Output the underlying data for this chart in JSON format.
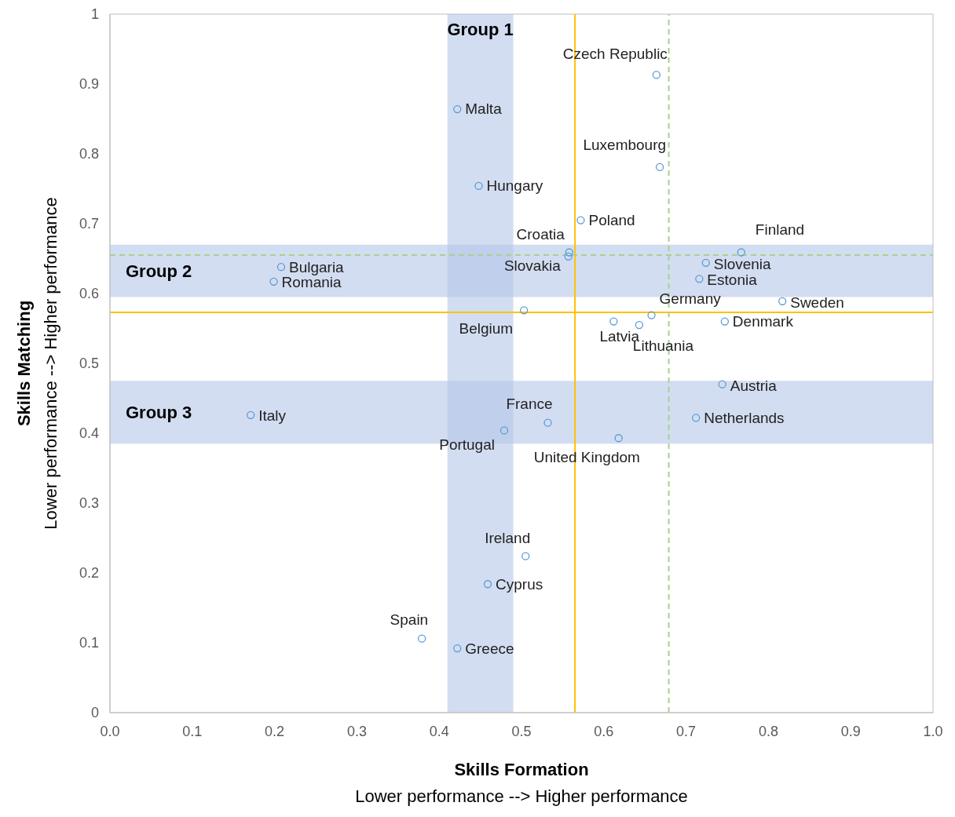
{
  "chart_data": {
    "type": "scatter",
    "xlabel": "Skills Formation\nLower performance --> Higher performance",
    "ylabel": "Skills Matching\nLower performance --> Higher performance",
    "xlim": [
      0,
      1
    ],
    "ylim": [
      0,
      1
    ],
    "xticks": [
      {
        "value": 0,
        "label": "0.0"
      },
      0.1,
      0.2,
      0.3,
      0.4,
      0.5,
      0.6,
      0.7,
      0.8,
      0.9,
      {
        "value": 1,
        "label": "1.0"
      }
    ],
    "yticks": [
      0,
      0.1,
      0.2,
      0.3,
      0.4,
      0.5,
      0.6,
      0.7,
      0.8,
      0.9,
      1
    ],
    "grid": false,
    "marker": "circle",
    "series": [
      {
        "color": "#5b9bd5",
        "x": [
          0.664,
          0.422,
          0.668,
          0.448,
          0.572,
          0.767,
          0.558,
          0.557,
          0.724,
          0.208,
          0.199,
          0.716,
          0.817,
          0.503,
          0.658,
          0.747,
          0.612,
          0.643,
          0.744,
          0.171,
          0.712,
          0.532,
          0.479,
          0.618,
          0.505,
          0.459,
          0.379,
          0.422
        ],
        "values": [
          0.913,
          0.864,
          0.781,
          0.754,
          0.705,
          0.659,
          0.659,
          0.653,
          0.644,
          0.638,
          0.617,
          0.621,
          0.589,
          0.576,
          0.569,
          0.56,
          0.56,
          0.555,
          0.47,
          0.426,
          0.422,
          0.415,
          0.404,
          0.393,
          0.224,
          0.184,
          0.106,
          0.092
        ]
      }
    ],
    "annotations": [
      {
        "text": "Czech Republic",
        "x": 0.664,
        "y": 0.913
      },
      {
        "text": "Malta",
        "x": 0.422,
        "y": 0.864
      },
      {
        "text": "Luxembourg",
        "x": 0.668,
        "y": 0.781
      },
      {
        "text": "Hungary",
        "x": 0.448,
        "y": 0.754
      },
      {
        "text": "Poland",
        "x": 0.572,
        "y": 0.705
      },
      {
        "text": "Finland",
        "x": 0.767,
        "y": 0.659
      },
      {
        "text": "Croatia",
        "x": 0.558,
        "y": 0.659
      },
      {
        "text": "Slovakia",
        "x": 0.557,
        "y": 0.653
      },
      {
        "text": "Slovenia",
        "x": 0.724,
        "y": 0.644
      },
      {
        "text": "Bulgaria",
        "x": 0.208,
        "y": 0.638
      },
      {
        "text": "Romania",
        "x": 0.199,
        "y": 0.617
      },
      {
        "text": "Estonia",
        "x": 0.716,
        "y": 0.621
      },
      {
        "text": "Sweden",
        "x": 0.817,
        "y": 0.589
      },
      {
        "text": "Belgium",
        "x": 0.503,
        "y": 0.576
      },
      {
        "text": "Germany",
        "x": 0.658,
        "y": 0.569
      },
      {
        "text": "Denmark",
        "x": 0.747,
        "y": 0.56
      },
      {
        "text": "Latvia",
        "x": 0.612,
        "y": 0.56
      },
      {
        "text": "Lithuania",
        "x": 0.643,
        "y": 0.555
      },
      {
        "text": "Austria",
        "x": 0.744,
        "y": 0.47
      },
      {
        "text": "Italy",
        "x": 0.171,
        "y": 0.426
      },
      {
        "text": "Netherlands",
        "x": 0.712,
        "y": 0.422
      },
      {
        "text": "France",
        "x": 0.532,
        "y": 0.415
      },
      {
        "text": "Portugal",
        "x": 0.479,
        "y": 0.404
      },
      {
        "text": "United Kingdom",
        "x": 0.618,
        "y": 0.393
      },
      {
        "text": "Ireland",
        "x": 0.505,
        "y": 0.224
      },
      {
        "text": "Cyprus",
        "x": 0.459,
        "y": 0.184
      },
      {
        "text": "Spain",
        "x": 0.379,
        "y": 0.106
      },
      {
        "text": "Greece",
        "x": 0.422,
        "y": 0.092
      }
    ],
    "ref_lines": [
      {
        "axis": "x",
        "value": 0.565,
        "color": "#ffc000",
        "line_style": "solid"
      },
      {
        "axis": "y",
        "value": 0.573,
        "color": "#ffc000",
        "line_style": "solid"
      },
      {
        "axis": "x",
        "value": 0.679,
        "color": "#a9d18e",
        "line_style": "dashed"
      },
      {
        "axis": "y",
        "value": 0.655,
        "color": "#a9d18e",
        "line_style": "dashed"
      }
    ],
    "bands": [
      {
        "axis": "x",
        "from": 0.41,
        "to": 0.49,
        "label": "Group 1",
        "color": "#b4c7e7"
      },
      {
        "axis": "y",
        "from": 0.595,
        "to": 0.67,
        "label": "Group 2",
        "color": "#b4c7e7"
      },
      {
        "axis": "y",
        "from": 0.385,
        "to": 0.475,
        "label": "Group 3",
        "color": "#b4c7e7"
      }
    ]
  }
}
